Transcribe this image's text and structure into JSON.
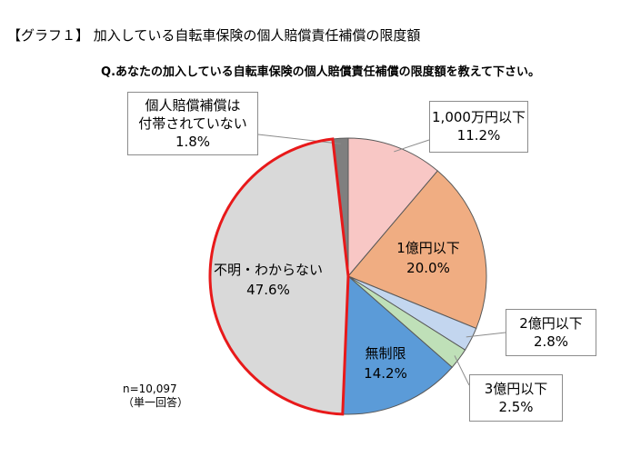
{
  "title": "【グラフ１】 加入している自転車保険の個人賠償責任補償の限度額",
  "question": "Q.あなたの加入している自転車保険の個人賠償責任補償の限度額を教えて下さい。",
  "sample": {
    "n": "n=10,097",
    "note": "（単一回答）"
  },
  "colors": {
    "slice_0": "#f8c7c5",
    "slice_1": "#f0ad82",
    "slice_2": "#c3d6ef",
    "slice_3": "#bfe0b8",
    "slice_4": "#5b9bd8",
    "slice_5": "#d9d9d9",
    "slice_6": "#7f7f7f",
    "highlight": "#e8191a"
  },
  "chart_data": {
    "type": "pie",
    "title": "",
    "slices": [
      {
        "label": "1,000万円以下",
        "value": 11.2,
        "value_label": "11.2%"
      },
      {
        "label": "1億円以下",
        "value": 20.0,
        "value_label": "20.0%"
      },
      {
        "label": "2億円以下",
        "value": 2.8,
        "value_label": "2.8%"
      },
      {
        "label": "3億円以下",
        "value": 2.5,
        "value_label": "2.5%"
      },
      {
        "label": "無制限",
        "value": 14.2,
        "value_label": "14.2%"
      },
      {
        "label": "不明・わからない",
        "value": 47.6,
        "value_label": "47.6%"
      },
      {
        "label": "個人賠償補償は付帯されていない",
        "label_lines": [
          "個人賠償補償は",
          "付帯されていない"
        ],
        "value": 1.8,
        "value_label": "1.8%"
      }
    ],
    "start": "12 o'clock",
    "direction": "clockwise",
    "highlighted_slice": "不明・わからない"
  }
}
